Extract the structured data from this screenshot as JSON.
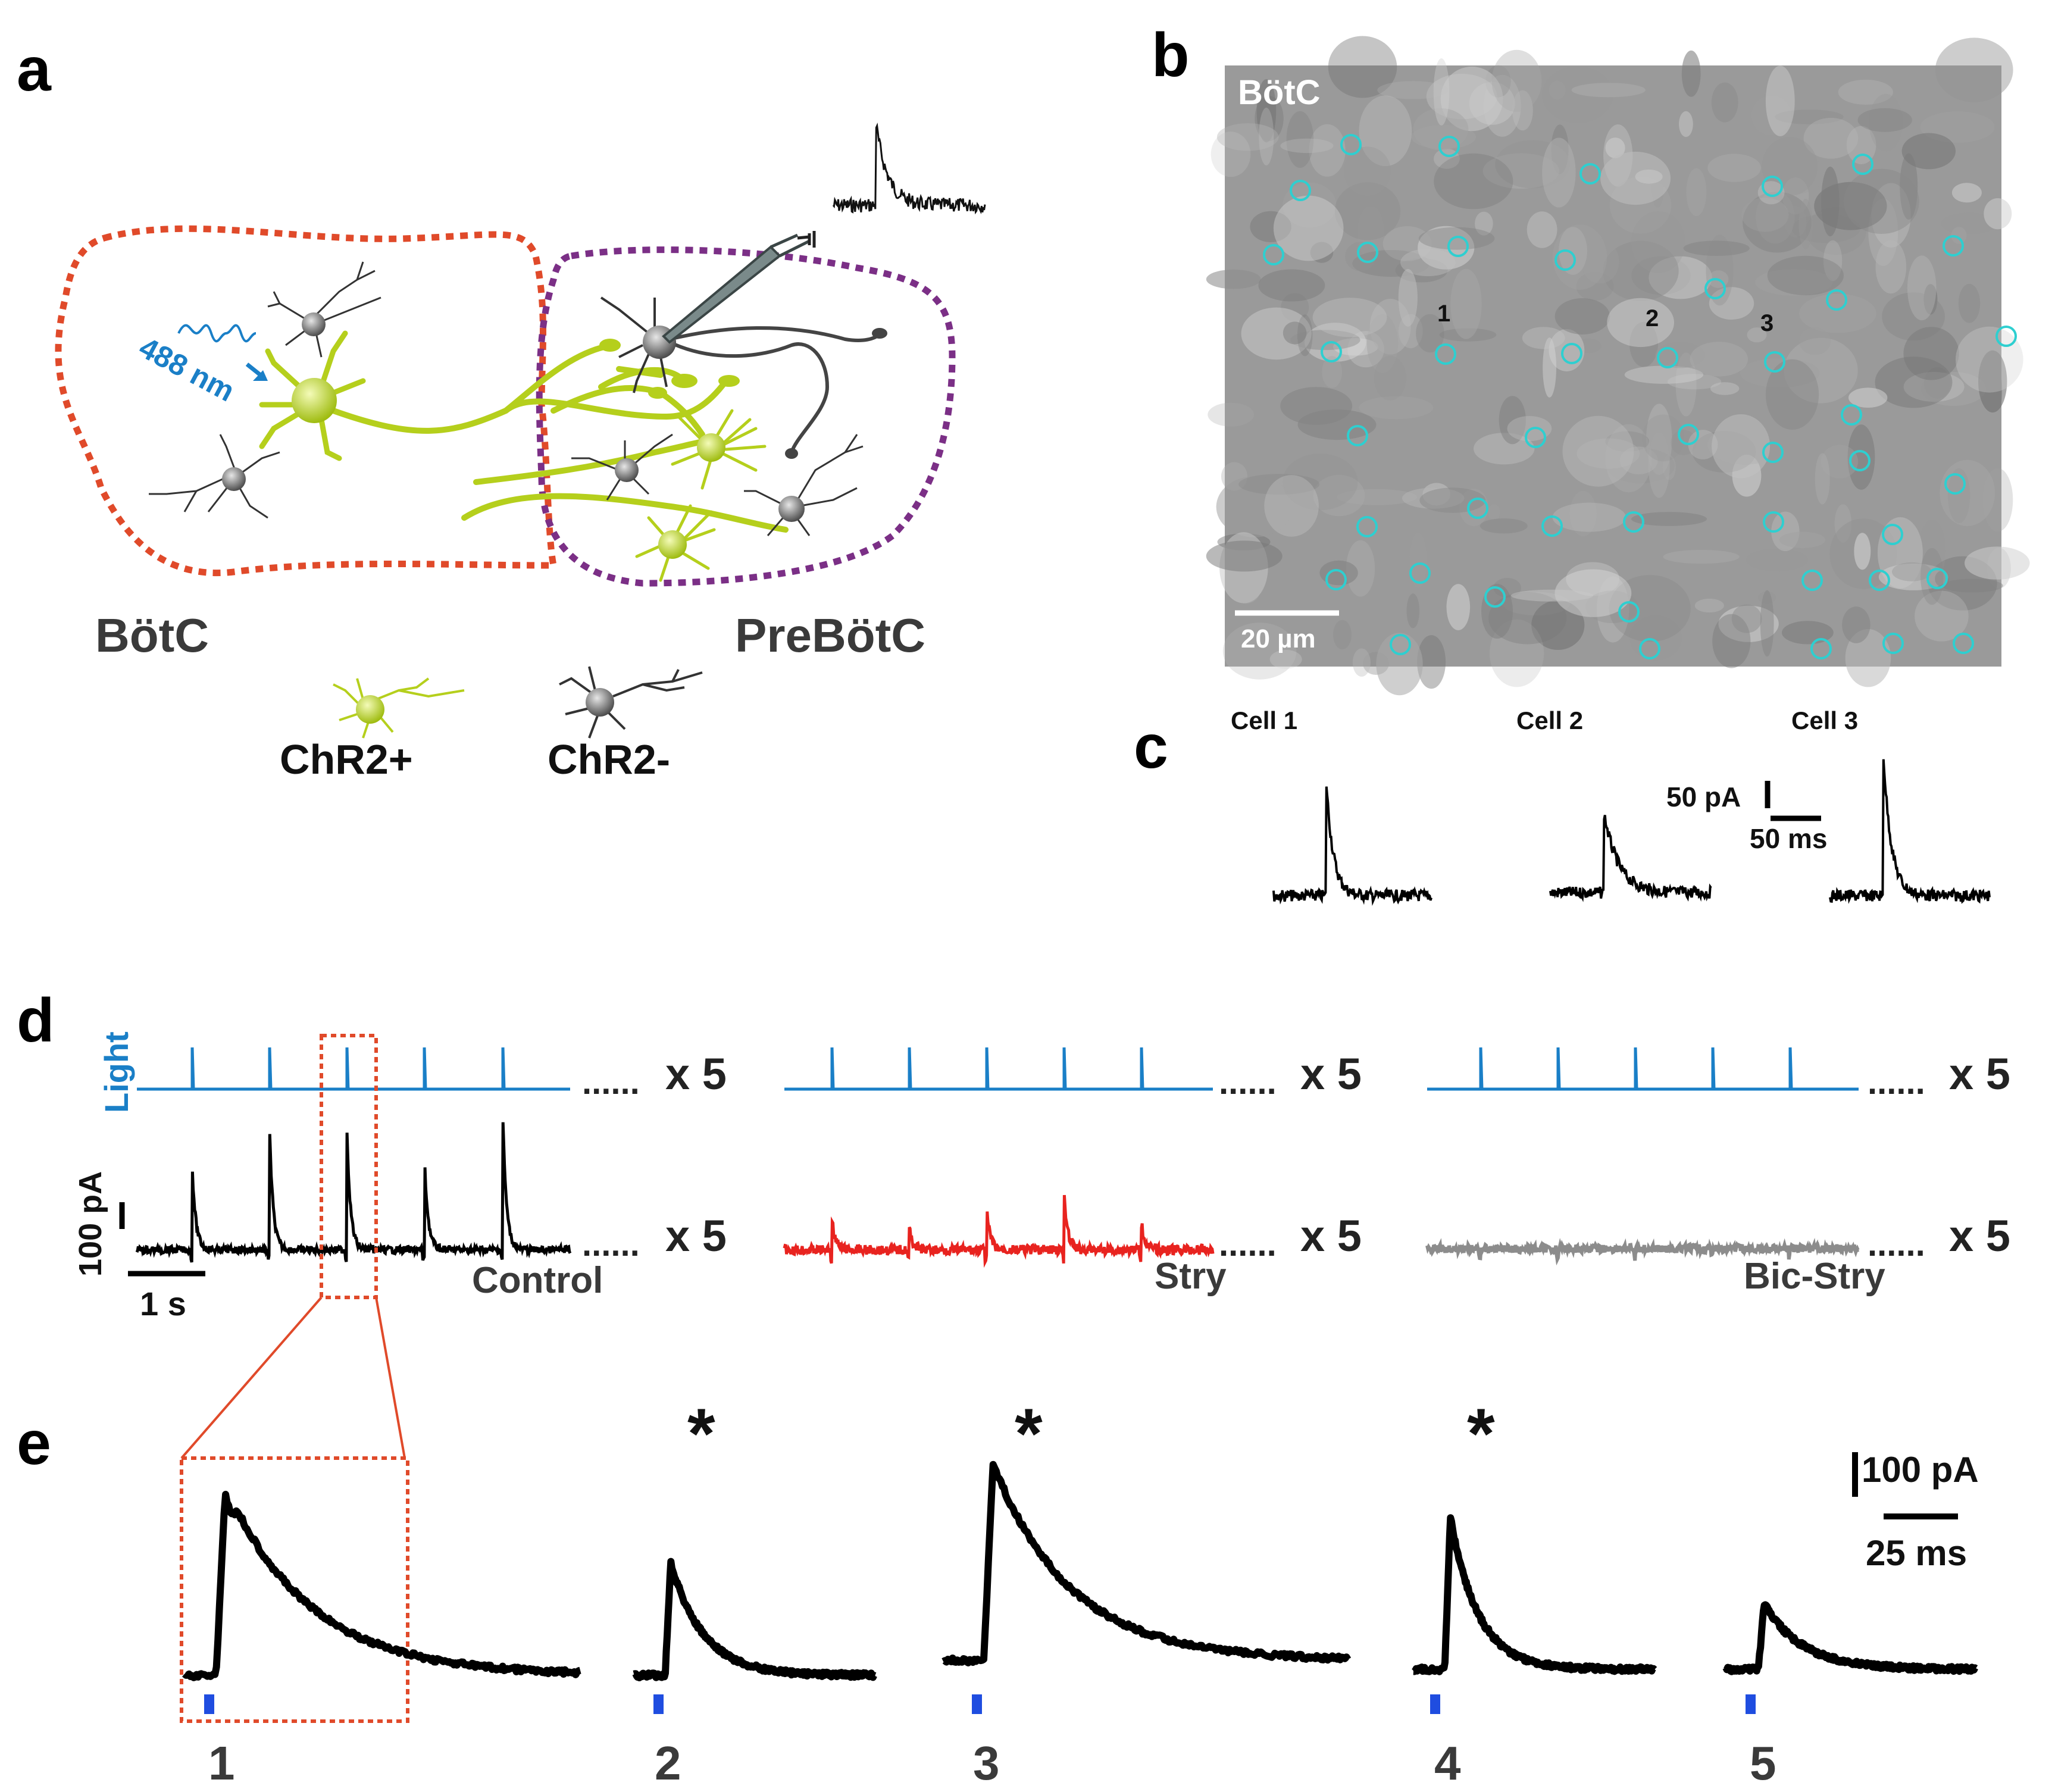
{
  "panel_letters": {
    "a": "a",
    "b": "b",
    "c": "c",
    "d": "d",
    "e": "e"
  },
  "panel_a": {
    "wavelength": "488 nm",
    "region_left": "BötC",
    "region_right": "PreBötC",
    "legend_pos": "ChR2+",
    "legend_neg": "ChR2-"
  },
  "panel_b": {
    "region": "BötC",
    "scale_bar": "20 µm",
    "cell_labels": [
      "1",
      "2",
      "3"
    ]
  },
  "panel_c": {
    "cells": [
      "Cell 1",
      "Cell 2",
      "Cell 3"
    ],
    "scale_current": "50 pA",
    "scale_time": "50 ms"
  },
  "panel_d": {
    "light_label": "Light",
    "repeat": "x 5",
    "dots": "......",
    "scale_current": "100 pA",
    "scale_time": "1 s",
    "conditions": [
      "Control",
      "Stry",
      "Bic-Stry"
    ]
  },
  "panel_e": {
    "scale_current": "100 pA",
    "scale_time": "25 ms",
    "trace_numbers": [
      "1",
      "2",
      "3",
      "4",
      "5"
    ],
    "star": "*"
  },
  "colors": {
    "light_blue": "#1a7fc7",
    "chr2_green": "#b5cf1c",
    "control_trace": "#000000",
    "stry_trace": "#e8231f",
    "bicstry_trace": "#8c8c8c",
    "botc_outline": "#e04a2a",
    "prebotc_outline": "#7b2f86",
    "roi_cyan": "#2ecfd0",
    "zoom_box": "#e04a2a",
    "stim_marker": "#1f4de0"
  }
}
